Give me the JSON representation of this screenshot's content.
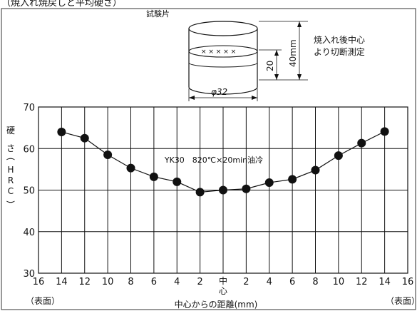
{
  "header_partial": "（焼入れ焼戻しと平均硬さ）",
  "specimen": {
    "label": "試験片",
    "height_label": "40mm",
    "band_label": "20",
    "diameter_label": "φ32",
    "cut_note_line1": "焼入れ後中心",
    "cut_note_line2": "より切断測定",
    "cross_marks": "× × × × ×"
  },
  "chart_data": {
    "type": "line",
    "title": "",
    "annotation": "YK30　820℃×20min油冷",
    "xlabel": "中心からの距離(mm)",
    "ylabel_chars": [
      "硬",
      "さ",
      "(",
      "H",
      "R",
      "C",
      ")"
    ],
    "x_tick_labels": [
      "16",
      "14",
      "12",
      "10",
      "8",
      "6",
      "4",
      "2",
      "中心",
      "2",
      "4",
      "6",
      "8",
      "10",
      "12",
      "14",
      "16"
    ],
    "x_edge_labels": {
      "left": "（表面）",
      "right": "（表面）"
    },
    "y_ticks": [
      30,
      40,
      50,
      60,
      70
    ],
    "ylim": [
      30,
      70
    ],
    "xlim": [
      -16,
      16
    ],
    "grid": true,
    "series": [
      {
        "x": [
          -14,
          -12,
          -10,
          -8,
          -6,
          -4,
          -2,
          0,
          2,
          4,
          6,
          8,
          10,
          12,
          14
        ],
        "y": [
          64,
          62.5,
          58.5,
          55.3,
          53.2,
          52,
          49.5,
          50,
          50.3,
          51.8,
          52.6,
          54.8,
          58.3,
          61.3,
          64.1
        ]
      }
    ]
  }
}
